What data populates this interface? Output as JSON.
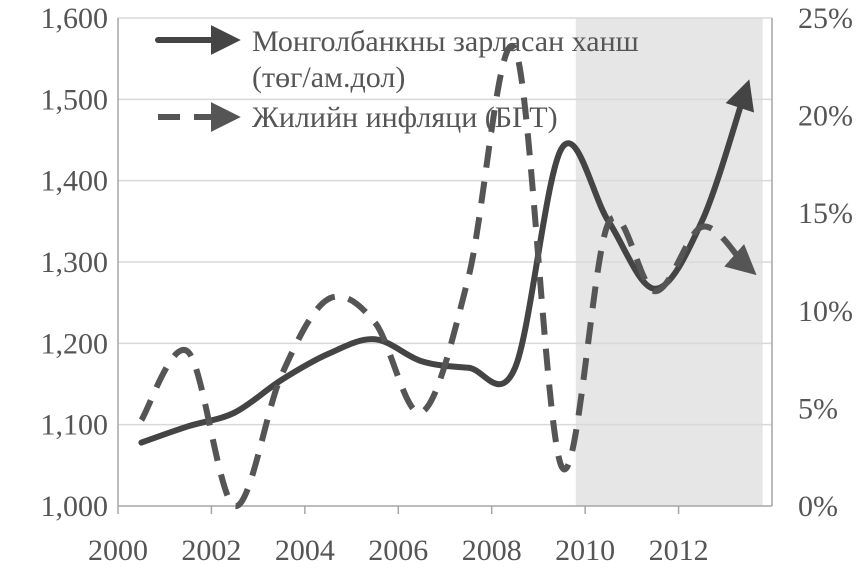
{
  "chart_data": {
    "type": "line",
    "title": "",
    "xlabel": "",
    "ylabel": "",
    "x_ticks": [
      "2000",
      "2002",
      "2004",
      "2006",
      "2008",
      "2010",
      "2012"
    ],
    "y_left_ticks": [
      "1,000",
      "1,100",
      "1,200",
      "1,300",
      "1,400",
      "1,500",
      "1,600"
    ],
    "y_right_ticks": [
      "0%",
      "5%",
      "10%",
      "15%",
      "20%",
      "25%"
    ],
    "ylim_left": [
      1000,
      1600
    ],
    "ylim_right": [
      0,
      25
    ],
    "xlim": [
      2000,
      14000
    ],
    "grid": "horizontal",
    "legend_position": "top-left",
    "shaded_region": {
      "from": 2009.8,
      "to": 2013.8,
      "color": "#e6e6e6"
    },
    "series": [
      {
        "name": "Монголбанкны зарласан ханш",
        "name_line2": "(төг/ам.дол)",
        "axis": "left",
        "style": "solid",
        "color": "#444444",
        "x": [
          2000.5,
          2001.5,
          2002.5,
          2003.5,
          2004.5,
          2005.5,
          2006.5,
          2007.5,
          2008.5,
          2009.5,
          2010.5,
          2011.5,
          2012.5,
          2013.4
        ],
        "y": [
          1078,
          1098,
          1115,
          1155,
          1187,
          1205,
          1178,
          1170,
          1170,
          1440,
          1350,
          1267,
          1350,
          1505
        ]
      },
      {
        "name": "Жилийн инфляци (БГТ)",
        "axis": "right",
        "style": "dashed",
        "color": "#555555",
        "x": [
          2000.5,
          2001.5,
          2002.5,
          2003.5,
          2004.5,
          2005.5,
          2006.5,
          2007.5,
          2008.5,
          2009.5,
          2010.5,
          2011.5,
          2012.5,
          2013.4
        ],
        "y": [
          4.4,
          7.9,
          0.0,
          6.7,
          10.6,
          9.4,
          4.8,
          11.7,
          23.4,
          2.0,
          14.5,
          11.0,
          14.3,
          12.4
        ]
      }
    ]
  }
}
